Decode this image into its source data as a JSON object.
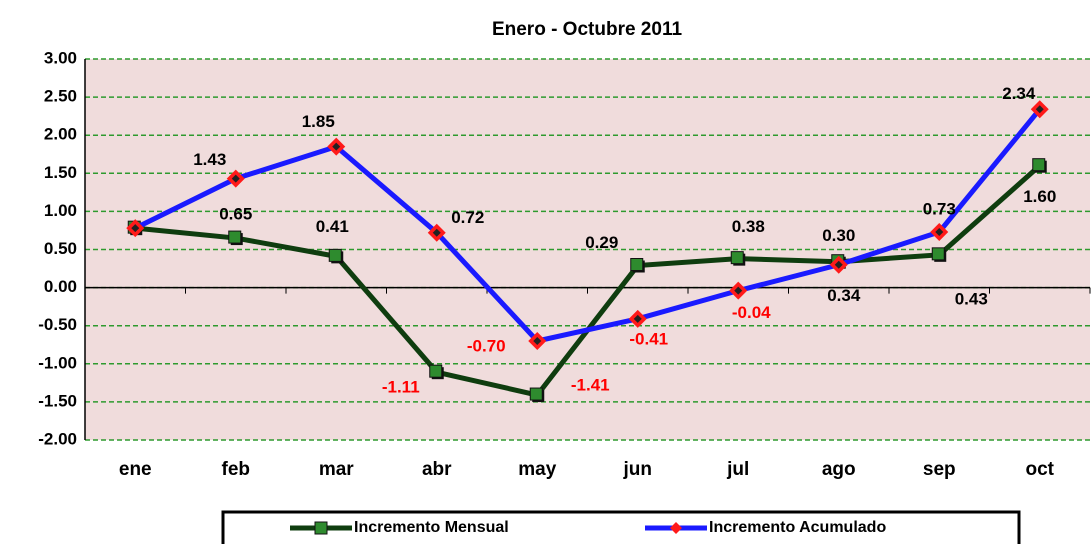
{
  "chart_data": {
    "type": "line",
    "title": "Enero - Octubre 2011",
    "categories": [
      "ene",
      "feb",
      "mar",
      "abr",
      "may",
      "jun",
      "jul",
      "ago",
      "sep",
      "oct"
    ],
    "series": [
      {
        "name": "Incremento Mensual",
        "color": "#0f3d0f",
        "marker_color": "#2e8b2e",
        "values": [
          0.78,
          0.65,
          0.41,
          -1.11,
          -1.41,
          0.29,
          0.38,
          0.34,
          0.43,
          1.6
        ],
        "value_labels": [
          null,
          "0.65",
          "0.41",
          "-1.11",
          "-1.41",
          "0.29",
          "0.38",
          "0.34",
          "0.43",
          "1.60"
        ]
      },
      {
        "name": "Incremento Acumulado",
        "color": "#1a1aff",
        "marker_color": "#ff1a1a",
        "values": [
          0.78,
          1.43,
          1.85,
          0.72,
          -0.7,
          -0.41,
          -0.04,
          0.3,
          0.73,
          2.34
        ],
        "value_labels": [
          null,
          "1.43",
          "1.85",
          "0.72",
          "-0.70",
          "-0.41",
          "-0.04",
          "0.30",
          "0.73",
          "2.34"
        ]
      }
    ],
    "ylim": [
      -2,
      3
    ],
    "yticks": [
      {
        "value": -2,
        "label": "-2.00"
      },
      {
        "value": -1.5,
        "label": "-1.50"
      },
      {
        "value": -1,
        "label": "-1.00"
      },
      {
        "value": -0.5,
        "label": "-0.50"
      },
      {
        "value": 0,
        "label": "0.00"
      },
      {
        "value": 0.5,
        "label": "0.50"
      },
      {
        "value": 1,
        "label": "1.00"
      },
      {
        "value": 1.5,
        "label": "1.50"
      },
      {
        "value": 2,
        "label": "2.00"
      },
      {
        "value": 2.5,
        "label": "2.50"
      },
      {
        "value": 3,
        "label": "3.00"
      }
    ],
    "grid": true
  }
}
